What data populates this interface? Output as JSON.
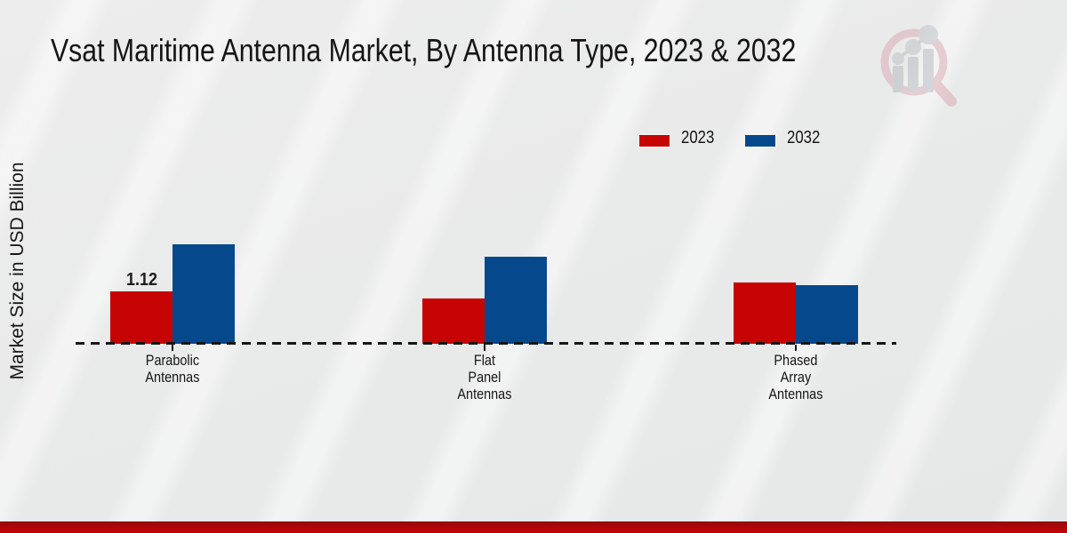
{
  "header": {
    "title": "Vsat Maritime Antenna Market, By Antenna Type, 2023 & 2032"
  },
  "y_axis": {
    "label": "Market Size in USD Billion"
  },
  "legend": {
    "items": [
      {
        "label": "2023",
        "color": "#c60404"
      },
      {
        "label": "2032",
        "color": "#05498c"
      }
    ]
  },
  "chart_data": {
    "type": "bar",
    "title": "Vsat Maritime Antenna Market, By Antenna Type, 2023 & 2032",
    "ylabel": "Market Size in USD Billion",
    "xlabel": "",
    "categories": [
      "Parabolic Antennas",
      "Flat Panel Antennas",
      "Phased Array Antennas"
    ],
    "category_lines": [
      [
        "Parabolic",
        "Antennas"
      ],
      [
        "Flat",
        "Panel",
        "Antennas"
      ],
      [
        "Phased",
        "Array",
        "Antennas"
      ]
    ],
    "series": [
      {
        "name": "2023",
        "color": "#c60404",
        "values": [
          1.12,
          0.97,
          1.31
        ]
      },
      {
        "name": "2032",
        "color": "#05498c",
        "values": [
          2.13,
          1.86,
          1.25
        ]
      }
    ],
    "value_labels": [
      {
        "group": 0,
        "series": 0,
        "text": "1.12"
      }
    ],
    "ylim": [
      0,
      2.5
    ],
    "grid": false,
    "legend_position": "top-right",
    "baseline": "dashed"
  },
  "logo": {
    "name": "market-research-watermark"
  },
  "footer": {
    "band_color": "#b30505"
  }
}
